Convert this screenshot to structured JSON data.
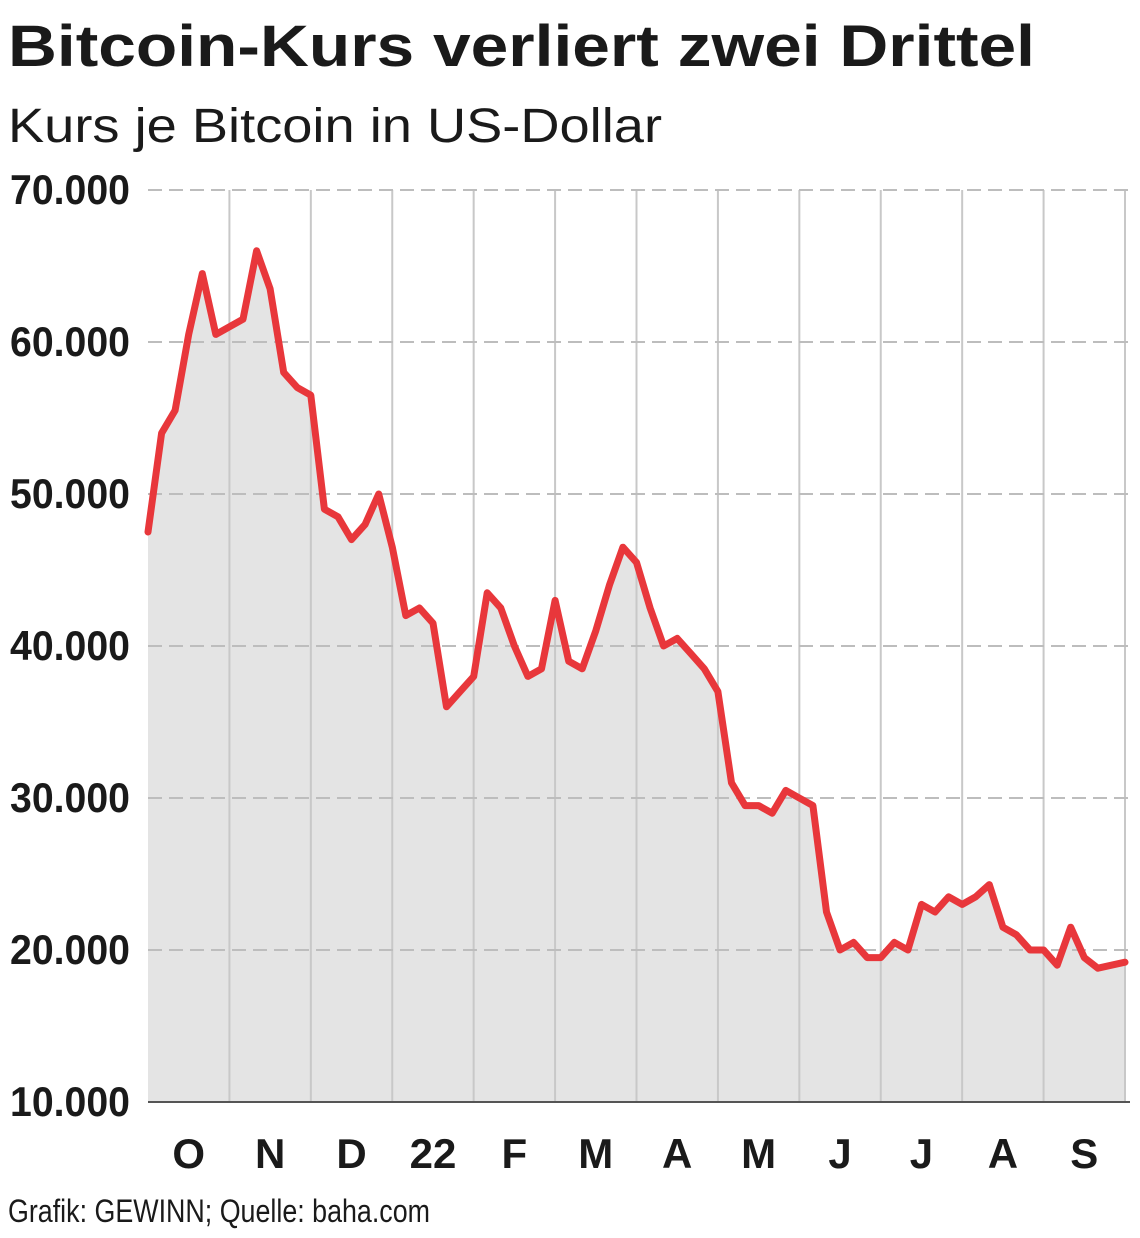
{
  "chart_data": {
    "type": "area",
    "title": "Bitcoin-Kurs verliert zwei Drittel",
    "subtitle": "Kurs je Bitcoin in US-Dollar",
    "source": "Grafik: GEWINN; Quelle: baha.com",
    "categories": [
      null,
      null,
      null,
      "O",
      null,
      null,
      null,
      null,
      null,
      "N",
      null,
      null,
      null,
      null,
      null,
      "D",
      null,
      null,
      null,
      null,
      null,
      "22",
      null,
      null,
      null,
      null,
      null,
      "F",
      null,
      null,
      null,
      null,
      null,
      "M",
      null,
      null,
      null,
      null,
      null,
      "A",
      null,
      null,
      null,
      null,
      null,
      "M",
      null,
      null,
      null,
      null,
      null,
      "J",
      null,
      null,
      null,
      null,
      null,
      "J",
      null,
      null,
      null,
      null,
      null,
      "A",
      null,
      null,
      null,
      null,
      null,
      "S",
      null,
      null,
      null
    ],
    "series": [
      {
        "name": "Bitcoin",
        "color": "#e8373b",
        "fill": "#e4e4e4",
        "values": [
          47500,
          54000,
          55500,
          60500,
          64500,
          60500,
          61000,
          61500,
          66000,
          63500,
          58000,
          57000,
          56500,
          49000,
          48500,
          47000,
          48000,
          50000,
          46500,
          42000,
          42500,
          41500,
          36000,
          37000,
          38000,
          43500,
          42500,
          40000,
          38000,
          38500,
          43000,
          39000,
          38500,
          41000,
          44000,
          46500,
          45500,
          42500,
          40000,
          40500,
          39500,
          38500,
          37000,
          31000,
          29500,
          29500,
          29000,
          30500,
          30000,
          29500,
          22500,
          20000,
          20500,
          19500,
          19500,
          20500,
          20000,
          23000,
          22500,
          23500,
          23000,
          23500,
          24300,
          21500,
          21000,
          20000,
          20000,
          19000,
          21500,
          19500,
          18800,
          19000,
          19200
        ]
      }
    ],
    "ylim": [
      10000,
      70000
    ],
    "yticks": [
      {
        "value": 10000,
        "label": "10.000"
      },
      {
        "value": 20000,
        "label": "20.000"
      },
      {
        "value": 30000,
        "label": "30.000"
      },
      {
        "value": 40000,
        "label": "40.000"
      },
      {
        "value": 50000,
        "label": "50.000"
      },
      {
        "value": 60000,
        "label": "60.000"
      },
      {
        "value": 70000,
        "label": "70.000"
      }
    ],
    "grid": true
  }
}
